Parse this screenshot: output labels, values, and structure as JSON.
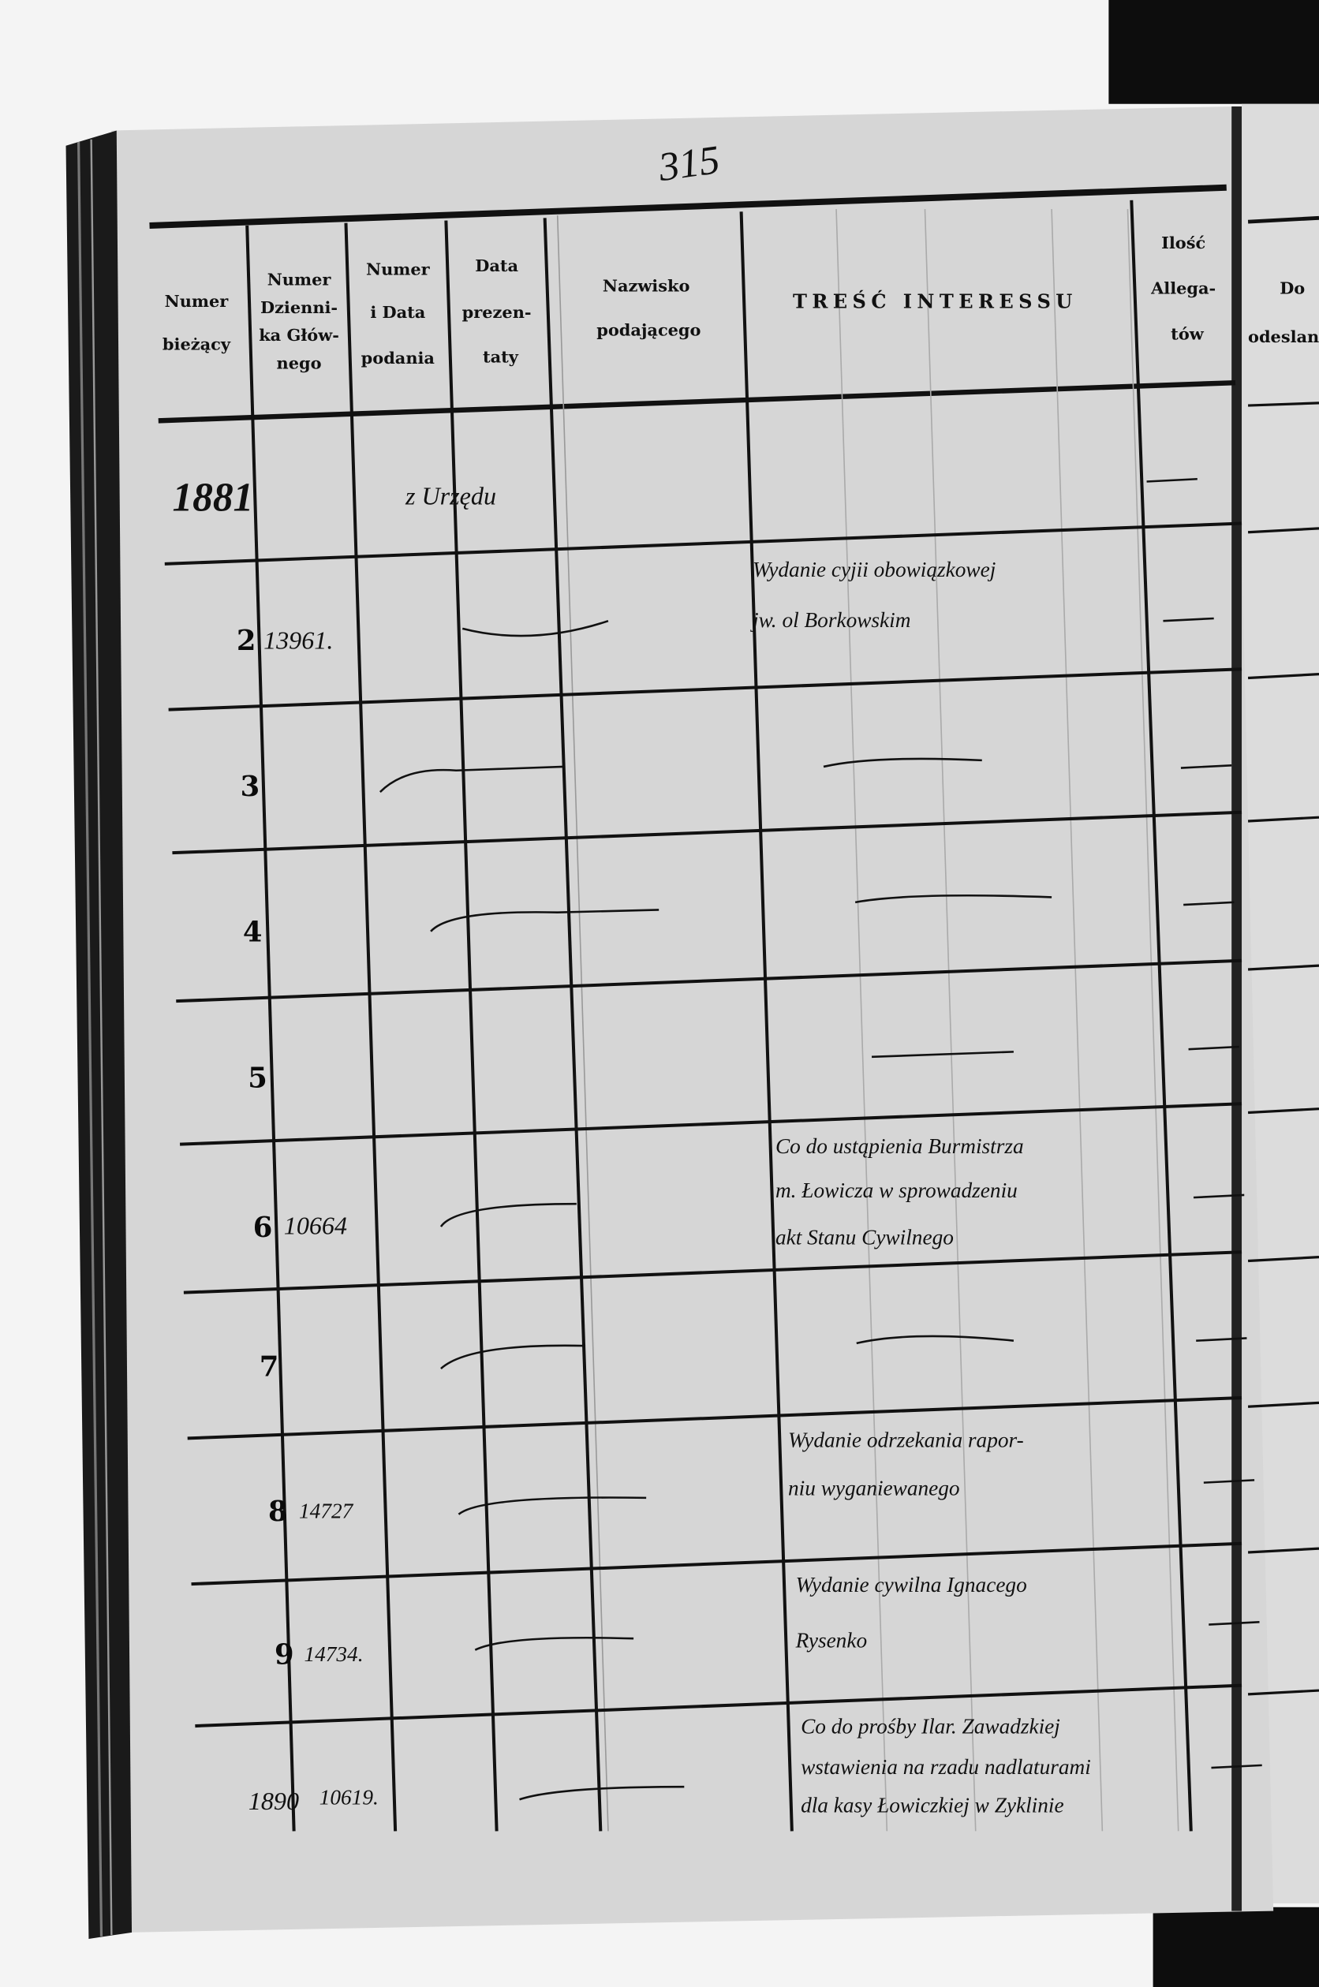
{
  "page_number": "315",
  "header": {
    "col1": [
      "Numer",
      "bieżący"
    ],
    "col2": [
      "Numer",
      "Dzienni-",
      "ka Głów-",
      "nego"
    ],
    "col3": [
      "Numer",
      "i Data",
      "podania"
    ],
    "col4": [
      "Data",
      "prezen-",
      "taty"
    ],
    "col5": [
      "Nazwisko",
      "podającego"
    ],
    "col6": "TREŚĆ INTERESSU",
    "col7": [
      "Ilość",
      "Allega-",
      "tów"
    ],
    "right_page": [
      "Do",
      "odeslan"
    ]
  },
  "rows": [
    {
      "no": "1881",
      "journal": "",
      "submitter": "z Urzędu",
      "content": []
    },
    {
      "no": "2",
      "journal": "13961.",
      "submitter": "",
      "content": [
        "Wydanie cyjii obowiązkowej",
        "jw. ol Borkowskim"
      ]
    },
    {
      "no": "3",
      "journal": "",
      "submitter": "",
      "content": []
    },
    {
      "no": "4",
      "journal": "",
      "submitter": "",
      "content": []
    },
    {
      "no": "5",
      "journal": "",
      "submitter": "",
      "content": []
    },
    {
      "no": "6",
      "journal": "10664",
      "submitter": "",
      "content": [
        "Co do ustąpienia Burmistrza",
        "m. Łowicza w sprowadzeniu",
        "akt Stanu Cywilnego"
      ]
    },
    {
      "no": "7",
      "journal": "",
      "submitter": "",
      "content": []
    },
    {
      "no": "8",
      "journal": "14727",
      "submitter": "",
      "content": [
        "Wydanie odrzekania rapor-",
        "niu wyganiewanego"
      ]
    },
    {
      "no": "9",
      "journal": "14734.",
      "submitter": "",
      "content": [
        "Wydanie cywilna Ignacego",
        "Rysenko"
      ]
    },
    {
      "no": "1890",
      "journal": "10619.",
      "submitter": "",
      "content": [
        "Co do prośby Ilar. Zawadzkiej",
        "wstawienia na rzadu nadlaturami",
        "dla kasy Łowiczkiej w Zyklinie"
      ]
    }
  ],
  "colors": {
    "paper": "#d9d9d9",
    "ink": "#111111",
    "edge": "#1a1a1a"
  }
}
